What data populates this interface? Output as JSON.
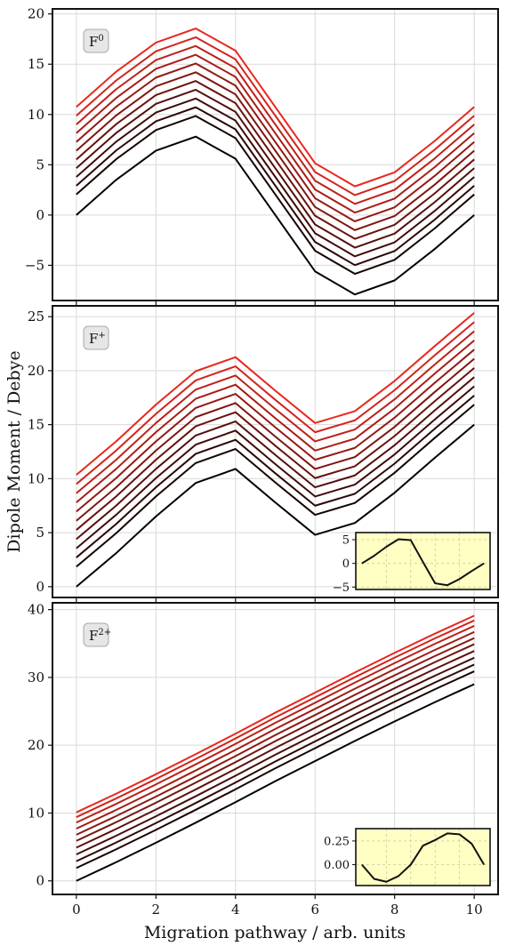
{
  "figure": {
    "ylabel": "Dipole Moment / Debye",
    "xlabel": "Migration pathway / arb. units",
    "colors": {
      "darkest": "#000000",
      "brightest": "#e8281e",
      "grid": "#d9d9d9",
      "inset_bg": "#ffffc4",
      "badge_bg": "#e6e6e6"
    }
  },
  "chart_data": [
    {
      "type": "line",
      "panel_label_base": "F",
      "panel_label_sup": "0",
      "xlim": [
        -0.6,
        10.6
      ],
      "ylim": [
        -8.5,
        20.5
      ],
      "yticks": [
        -5,
        0,
        5,
        10,
        15,
        20
      ],
      "xticks": [
        0,
        2,
        4,
        6,
        8,
        10
      ],
      "grid": true,
      "x": [
        0,
        1,
        2,
        3,
        4,
        5,
        6,
        7,
        8,
        9,
        10
      ],
      "base": [
        0,
        3.5,
        6.4,
        7.8,
        5.6,
        0,
        -5.6,
        -7.9,
        -6.5,
        -3.4,
        0
      ],
      "offsets": [
        0,
        2.05,
        2.92,
        3.79,
        4.66,
        5.53,
        6.4,
        7.27,
        8.14,
        9.01,
        9.88,
        10.75
      ],
      "inset": null
    },
    {
      "type": "line",
      "panel_label_base": "F",
      "panel_label_sup": "+",
      "xlim": [
        -0.6,
        10.6
      ],
      "ylim": [
        -1.0,
        26.0
      ],
      "yticks": [
        0,
        5,
        10,
        15,
        20,
        25
      ],
      "xticks": [
        0,
        2,
        4,
        6,
        8,
        10
      ],
      "grid": true,
      "x": [
        0,
        1,
        2,
        3,
        4,
        5,
        6,
        7,
        8,
        9,
        10
      ],
      "linear": [
        0,
        1.5,
        3.0,
        4.5,
        6.0,
        7.5,
        9.0,
        10.5,
        12.0,
        13.5,
        15.0
      ],
      "inset_scale": 1.0,
      "offsets": [
        0,
        1.85,
        2.7,
        3.55,
        4.4,
        5.25,
        6.1,
        6.95,
        7.8,
        8.65,
        9.5,
        10.35
      ],
      "inset": {
        "x": [
          0,
          1,
          2,
          3,
          4,
          5,
          6,
          7,
          8,
          9,
          10
        ],
        "y": [
          0,
          1.6,
          3.5,
          5.1,
          4.9,
          0.3,
          -4.2,
          -4.6,
          -3.3,
          -1.6,
          0
        ],
        "xlim": [
          -0.5,
          10.5
        ],
        "ylim": [
          -5.5,
          6.5
        ],
        "yticks": [
          -5,
          0,
          5
        ],
        "grid": true
      }
    },
    {
      "type": "line",
      "panel_label_base": "F",
      "panel_label_sup": "2+",
      "xlim": [
        -0.6,
        10.6
      ],
      "ylim": [
        -2.0,
        41.0
      ],
      "yticks": [
        0,
        10,
        20,
        30,
        40
      ],
      "xticks": [
        0,
        2,
        4,
        6,
        8,
        10
      ],
      "grid": true,
      "x": [
        0,
        1,
        2,
        3,
        4,
        5,
        6,
        7,
        8,
        9,
        10
      ],
      "linear": [
        0,
        2.9,
        5.8,
        8.7,
        11.6,
        14.5,
        17.4,
        20.3,
        23.2,
        26.1,
        29.0
      ],
      "inset_scale": 1.0,
      "offsets": [
        0,
        1.9,
        2.9,
        3.9,
        4.9,
        5.9,
        6.8,
        7.7,
        8.6,
        9.4,
        10.1
      ],
      "inset": {
        "x": [
          0,
          1,
          2,
          3,
          4,
          5,
          6,
          7,
          8,
          9,
          10
        ],
        "y": [
          0,
          -0.15,
          -0.18,
          -0.12,
          0.0,
          0.2,
          0.26,
          0.33,
          0.32,
          0.22,
          0
        ],
        "xlim": [
          -0.5,
          10.5
        ],
        "ylim": [
          -0.22,
          0.38
        ],
        "yticks": [
          0,
          0.25
        ],
        "ytick_labels": [
          "0.00",
          "0.25"
        ],
        "grid": true
      }
    }
  ]
}
